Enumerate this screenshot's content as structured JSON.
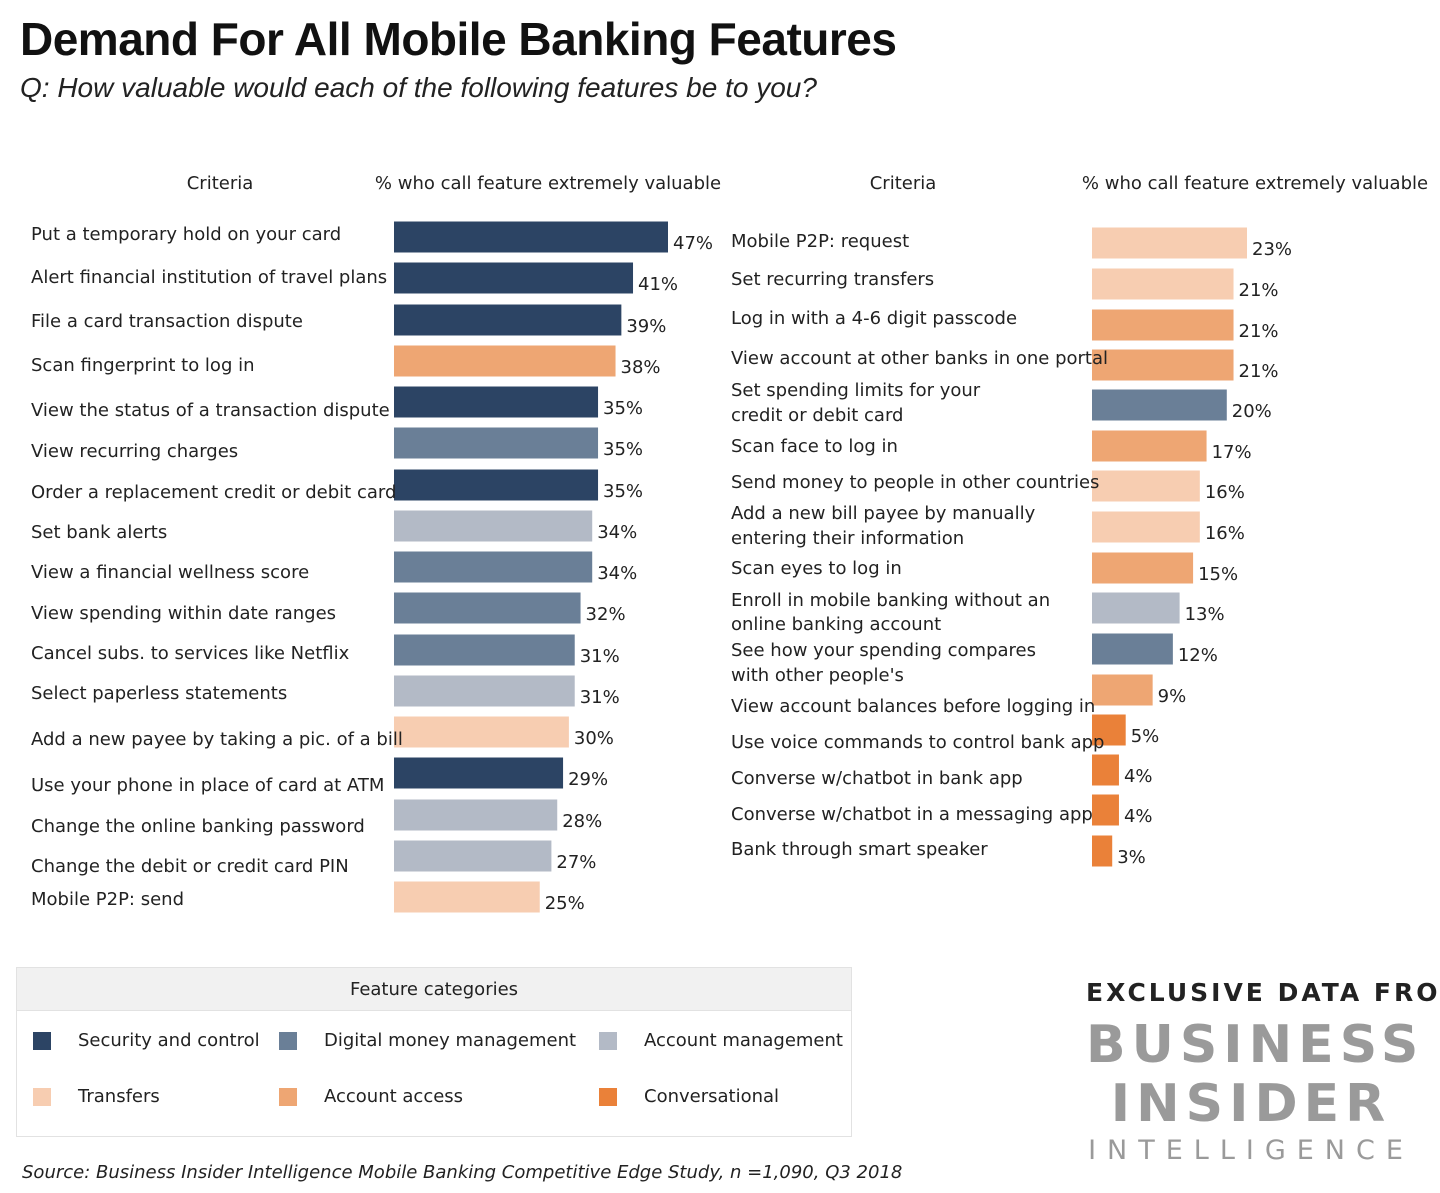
{
  "title": "Demand For All Mobile Banking Features",
  "subtitle": "Q: How valuable would each of the following features be to you?",
  "chart_data": {
    "type": "bar",
    "orientation": "horizontal",
    "value_header": "% who call feature extremely valuable",
    "criteria_header": "Criteria",
    "unit": "%",
    "categories": {
      "security": {
        "label": "Security and control",
        "color": "#2c4464"
      },
      "digital": {
        "label": "Digital money management",
        "color": "#6a7f97"
      },
      "account": {
        "label": "Account management",
        "color": "#b3bac6"
      },
      "transfers": {
        "label": "Transfers",
        "color": "#f7cdb1"
      },
      "access": {
        "label": "Account access",
        "color": "#eea673"
      },
      "conversational": {
        "label": "Conversational",
        "color": "#ea8139"
      }
    },
    "panels": [
      {
        "items": [
          {
            "label": "Put a temporary hold on your card",
            "value": 47,
            "category": "security"
          },
          {
            "label": "Alert financial institution of travel plans",
            "value": 41,
            "category": "security"
          },
          {
            "label": "File a card transaction dispute",
            "value": 39,
            "category": "security"
          },
          {
            "label": "Scan fingerprint to log in",
            "value": 38,
            "category": "access"
          },
          {
            "label": "View the status of a transaction dispute",
            "value": 35,
            "category": "security"
          },
          {
            "label": "View recurring charges",
            "value": 35,
            "category": "digital"
          },
          {
            "label": "Order a replacement credit or debit card",
            "value": 35,
            "category": "security"
          },
          {
            "label": "Set bank alerts",
            "value": 34,
            "category": "account"
          },
          {
            "label": "View a financial wellness score",
            "value": 34,
            "category": "digital"
          },
          {
            "label": "View spending within date ranges",
            "value": 32,
            "category": "digital"
          },
          {
            "label": "Cancel subs. to services like Netflix",
            "value": 31,
            "category": "digital"
          },
          {
            "label": "Select paperless statements",
            "value": 31,
            "category": "account"
          },
          {
            "label": "Add a new payee by taking a pic. of a bill",
            "value": 30,
            "category": "transfers"
          },
          {
            "label": "Use your phone in place of card at ATM",
            "value": 29,
            "category": "security"
          },
          {
            "label": "Change the online banking password",
            "value": 28,
            "category": "account"
          },
          {
            "label": "Change the debit or credit card PIN",
            "value": 27,
            "category": "account"
          },
          {
            "label": "Mobile P2P: send",
            "value": 25,
            "category": "transfers"
          }
        ]
      },
      {
        "items": [
          {
            "label": "Mobile P2P: request",
            "value": 23,
            "category": "transfers"
          },
          {
            "label": "Set recurring transfers",
            "value": 21,
            "category": "transfers"
          },
          {
            "label": "Log in with a 4-6 digit passcode",
            "value": 21,
            "category": "access"
          },
          {
            "label": "View account at other banks in one portal",
            "value": 21,
            "category": "access"
          },
          {
            "label": "Set spending limits for your credit or debit card",
            "value": 20,
            "category": "digital"
          },
          {
            "label": "Scan face to log in",
            "value": 17,
            "category": "access"
          },
          {
            "label": "Send money to people in other countries",
            "value": 16,
            "category": "transfers"
          },
          {
            "label": "Add a new bill payee by manually entering their information",
            "value": 16,
            "category": "transfers"
          },
          {
            "label": "Scan eyes to log in",
            "value": 15,
            "category": "access"
          },
          {
            "label": "Enroll in mobile banking without an online banking account",
            "value": 13,
            "category": "account"
          },
          {
            "label": "See how your spending compares with other people's",
            "value": 12,
            "category": "digital"
          },
          {
            "label": "View account balances before logging in",
            "value": 9,
            "category": "access"
          },
          {
            "label": "Use voice commands to control bank app",
            "value": 5,
            "category": "conversational"
          },
          {
            "label": "Converse w/chatbot in bank app",
            "value": 4,
            "category": "conversational"
          },
          {
            "label": "Converse w/chatbot in a messaging app",
            "value": 4,
            "category": "conversational"
          },
          {
            "label": "Bank through smart speaker",
            "value": 3,
            "category": "conversational"
          }
        ]
      }
    ]
  },
  "legend": {
    "title": "Feature categories",
    "order": [
      "security",
      "digital",
      "account",
      "transfers",
      "access",
      "conversational"
    ]
  },
  "brand": {
    "tagline": "EXCLUSIVE DATA FROM",
    "name_line1": "BUSINESS",
    "name_line2": "INSIDER",
    "name_line3": "INTELLIGENCE"
  },
  "source": "Source: Business Insider Intelligence Mobile Banking Competitive Edge Study, n =1,090, Q3 2018"
}
